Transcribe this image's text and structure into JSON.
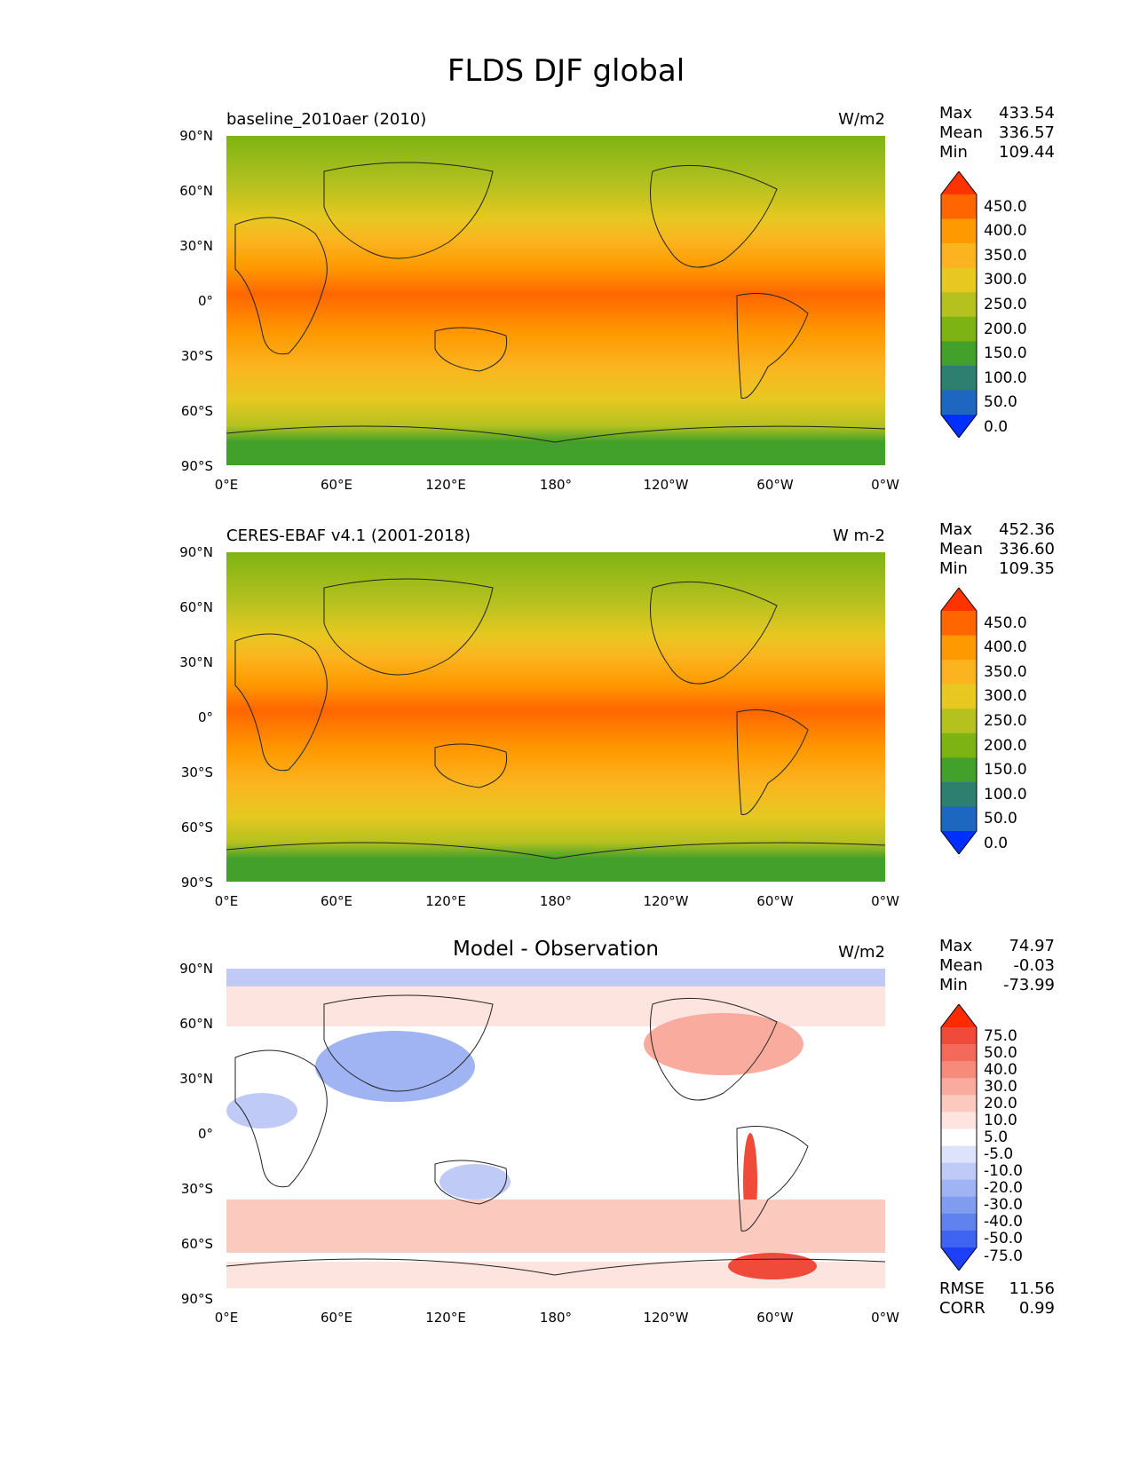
{
  "title": "FLDS DJF global",
  "panels": [
    {
      "label": "baseline_2010aer (2010)",
      "unit": "W/m2",
      "stats": {
        "max_label": "Max",
        "max": "433.54",
        "mean_label": "Mean",
        "mean": "336.57",
        "min_label": "Min",
        "min": "109.44"
      },
      "colorbar": {
        "ticks": [
          "450.0",
          "400.0",
          "350.0",
          "300.0",
          "250.0",
          "200.0",
          "150.0",
          "100.0",
          "50.0",
          "0.0"
        ],
        "colors": [
          "#ff3300",
          "#ff6600",
          "#ff9900",
          "#fbb41f",
          "#e6c820",
          "#b5c11f",
          "#7db414",
          "#43a02a",
          "#2d8070",
          "#1e67c0",
          "#0030ff"
        ]
      }
    },
    {
      "label": "CERES-EBAF v4.1 (2001-2018)",
      "unit": "W m-2",
      "stats": {
        "max_label": "Max",
        "max": "452.36",
        "mean_label": "Mean",
        "mean": "336.60",
        "min_label": "Min",
        "min": "109.35"
      },
      "colorbar": {
        "ticks": [
          "450.0",
          "400.0",
          "350.0",
          "300.0",
          "250.0",
          "200.0",
          "150.0",
          "100.0",
          "50.0",
          "0.0"
        ],
        "colors": [
          "#ff3300",
          "#ff6600",
          "#ff9900",
          "#fbb41f",
          "#e6c820",
          "#b5c11f",
          "#7db414",
          "#43a02a",
          "#2d8070",
          "#1e67c0",
          "#0030ff"
        ]
      }
    },
    {
      "label": "Model - Observation",
      "unit": "W/m2",
      "stats": {
        "max_label": "Max",
        "max": "74.97",
        "mean_label": "Mean",
        "mean": "-0.03",
        "min_label": "Min",
        "min": "-73.99"
      },
      "colorbar": {
        "ticks": [
          "75.0",
          "50.0",
          "40.0",
          "30.0",
          "20.0",
          "10.0",
          "5.0",
          "-5.0",
          "-10.0",
          "-20.0",
          "-30.0",
          "-40.0",
          "-50.0",
          "-75.0"
        ],
        "colors": [
          "#ff2a00",
          "#ef4a3a",
          "#f46a5a",
          "#f78b7b",
          "#f9ab9d",
          "#fcc9bf",
          "#fde4df",
          "#ffffff",
          "#dce3fb",
          "#bfcbf6",
          "#a0b3f2",
          "#809cef",
          "#5f82ee",
          "#3f64f2",
          "#1e3ff8"
        ]
      },
      "extra": {
        "rmse_label": "RMSE",
        "rmse": "11.56",
        "corr_label": "CORR",
        "corr": "0.99"
      }
    }
  ],
  "axes": {
    "y_ticks": [
      "90°N",
      "60°N",
      "30°N",
      "0°",
      "30°S",
      "60°S",
      "90°S"
    ],
    "x_ticks": [
      "0°E",
      "60°E",
      "120°E",
      "180°",
      "120°W",
      "60°W",
      "0°W"
    ]
  }
}
